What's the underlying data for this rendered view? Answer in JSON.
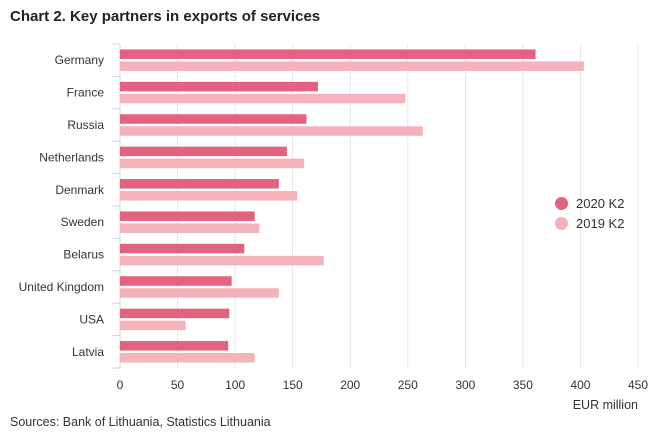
{
  "chart_data": {
    "type": "bar",
    "orientation": "horizontal",
    "title": "Chart 2. Key partners in exports of services",
    "xlabel": "EUR million",
    "ylabel": "",
    "source": "Sources: Bank of Lithuania, Statistics Lithuania",
    "categories": [
      "Germany",
      "France",
      "Russia",
      "Netherlands",
      "Denmark",
      "Sweden",
      "Belarus",
      "United Kingdom",
      "USA",
      "Latvia"
    ],
    "series": [
      {
        "name": "2020 K2",
        "color": "#e2627f",
        "values": [
          361,
          172,
          162,
          145,
          138,
          117,
          108,
          97,
          95,
          94
        ]
      },
      {
        "name": "2019 K2",
        "color": "#f4b3bb",
        "values": [
          403,
          248,
          263,
          160,
          154,
          121,
          177,
          138,
          57,
          117
        ]
      }
    ],
    "xlim": [
      0,
      450
    ],
    "xticks": [
      0,
      50,
      100,
      150,
      200,
      250,
      300,
      350,
      400,
      450
    ],
    "grid": true,
    "legend_position": "right"
  }
}
